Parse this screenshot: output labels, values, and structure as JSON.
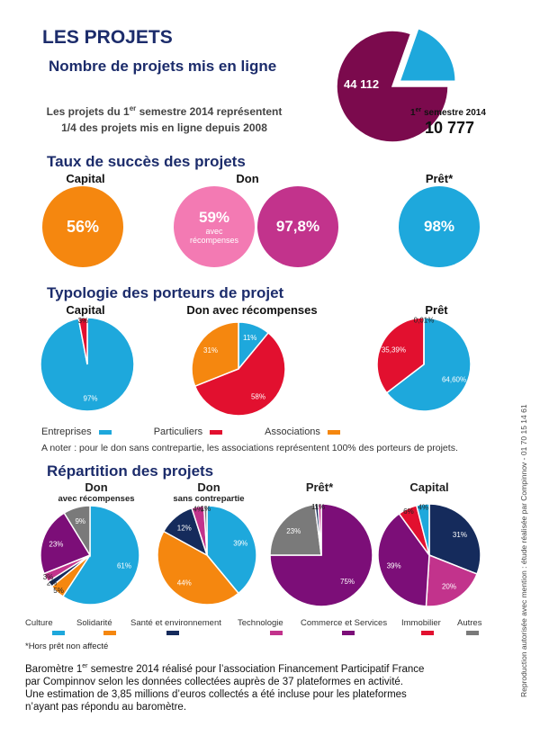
{
  "colors": {
    "navy": "#1c2c6b",
    "maroon": "#7b0a4d",
    "cyan": "#1ea8dc",
    "orange": "#f5870f",
    "pink": "#f37ab3",
    "magenta": "#c2338c",
    "red": "#e2102f",
    "darknavy": "#152b5c",
    "purple": "#7c0e78",
    "gray": "#7a7a7a"
  },
  "header": {
    "title": "LES PROJETS",
    "subtitle": "Nombre de projets mis en ligne",
    "intro_line1_pre": "Les projets du 1",
    "intro_line1_sup": "er",
    "intro_line1_post": " semestre 2014 représentent",
    "intro_line2": "1/4 des projets mis en ligne depuis 2008",
    "big_pie": {
      "total_label": "44 112",
      "semester_label_pre": "1",
      "semester_label_sup": "er",
      "semester_label_post": " semestre 2014",
      "semester_value": "10 777"
    }
  },
  "success": {
    "title": "Taux de succès des projets",
    "capital_label": "Capital",
    "capital_value": "56%",
    "don_label": "Don",
    "don_avec_value": "59%",
    "don_avec_caption": "avec\nrécompenses",
    "don_sans_value": "97,8%",
    "pret_label": "Prêt*",
    "pret_value": "98%"
  },
  "typologie": {
    "title": "Typologie des porteurs de projet",
    "labels": [
      "Capital",
      "Don avec récompenses",
      "Prêt"
    ],
    "legend": [
      "Entreprises",
      "Particuliers",
      "Associations"
    ],
    "note": "A noter : pour le don sans contrepartie, les associations représentent 100% des porteurs de projets."
  },
  "repartition": {
    "title": "Répartition des projets",
    "labels": [
      {
        "main": "Don",
        "sub": "avec récompenses"
      },
      {
        "main": "Don",
        "sub": "sans contrepartie"
      },
      {
        "main": "Prêt*",
        "sub": ""
      },
      {
        "main": "Capital",
        "sub": ""
      }
    ],
    "legend": [
      "Culture",
      "Solidarité",
      "Santé et environnement",
      "Technologie",
      "Commerce et Services",
      "Immobilier",
      "Autres"
    ],
    "footnote": "*Hors prêt non affecté"
  },
  "footer": {
    "line1_pre": "Baromètre 1",
    "line1_sup": "er",
    "line1_post": " semestre 2014 réalisé pour l’association Financement Participatif France",
    "line2": "par Compinnov selon les données collectées auprès de 37 plateformes en activité.",
    "line3": "Une estimation de 3,85 millions d’euros collectés a été incluse pour les plateformes",
    "line4": "n’ayant pas répondu au baromètre.",
    "side_text": "Reproduction autorisée avec mention : étude réalisée par Compinnov - 01 70 15 14 61"
  },
  "chart_data": [
    {
      "type": "pie",
      "categories": [
        "44 112",
        "1er semestre 2014"
      ],
      "values": [
        44112,
        10777
      ]
    },
    {
      "type": "pie",
      "title": "Capital",
      "categories": [
        "Entreprises",
        "Particuliers"
      ],
      "values": [
        97,
        3
      ],
      "value_labels": [
        "97%",
        "3%"
      ]
    },
    {
      "type": "pie",
      "title": "Don avec récompenses",
      "categories": [
        "Entreprises",
        "Particuliers",
        "Associations"
      ],
      "values": [
        11,
        58,
        31
      ],
      "value_labels": [
        "11%",
        "58%",
        "31%"
      ]
    },
    {
      "type": "pie",
      "title": "Prêt",
      "categories": [
        "Entreprises",
        "Particuliers",
        "Associations"
      ],
      "values": [
        64.6,
        35.39,
        0.01
      ],
      "value_labels": [
        "64,60%",
        "35,39%",
        "0,01%"
      ]
    },
    {
      "type": "pie",
      "title": "Don avec récompenses",
      "categories": [
        "Culture",
        "Solidarité",
        "Santé et environnement",
        "Technologie",
        "Commerce et Services",
        "Autres"
      ],
      "values": [
        61,
        5,
        2,
        3,
        23,
        9
      ],
      "value_labels": [
        "61%",
        "5%",
        "2%",
        "3%",
        "23%",
        "9%"
      ]
    },
    {
      "type": "pie",
      "title": "Don sans contrepartie",
      "categories": [
        "Culture",
        "Solidarité",
        "Santé et environnement",
        "Technologie",
        "Autres"
      ],
      "values": [
        39,
        44,
        12,
        4,
        1
      ],
      "value_labels": [
        "39%",
        "44%",
        "12%",
        "4%",
        "1%"
      ]
    },
    {
      "type": "pie",
      "title": "Prêt*",
      "categories": [
        "Commerce et Services",
        "Autres",
        "Santé et environnement",
        "Technologie"
      ],
      "values": [
        75,
        23,
        1,
        1
      ],
      "value_labels": [
        "75%",
        "23%",
        "1%",
        "1%"
      ]
    },
    {
      "type": "pie",
      "title": "Capital",
      "categories": [
        "Santé et environnement",
        "Technologie",
        "Commerce et Services",
        "Immobilier",
        "Culture"
      ],
      "values": [
        31,
        20,
        39,
        6,
        4
      ],
      "value_labels": [
        "31%",
        "20%",
        "39%",
        "6%",
        "4%"
      ]
    }
  ]
}
